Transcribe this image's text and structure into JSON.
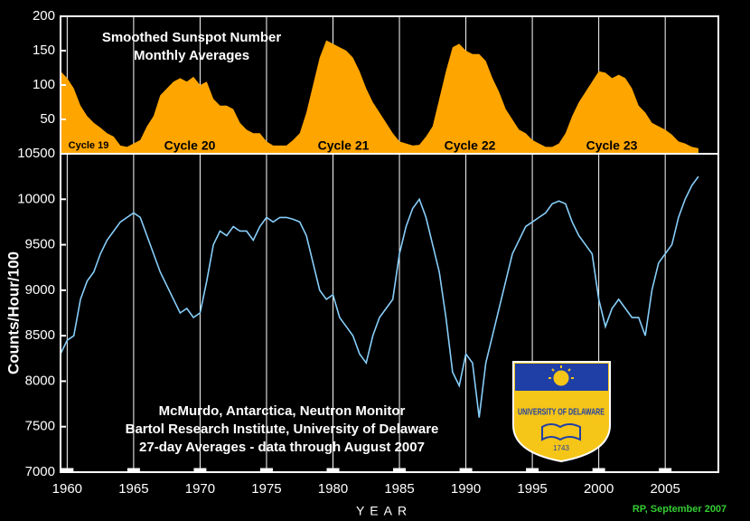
{
  "chart_data": [
    {
      "type": "area",
      "title": "Smoothed Sunspot Number",
      "subtitle": "Monthly Averages",
      "color": "#ffa500",
      "annotations": [
        "Cycle 19",
        "Cycle 20",
        "Cycle 21",
        "Cycle 22",
        "Cycle 23"
      ],
      "x": [
        1959.5,
        1960,
        1960.5,
        1961,
        1961.5,
        1962,
        1962.5,
        1963,
        1963.5,
        1964,
        1964.5,
        1965,
        1965.5,
        1966,
        1966.5,
        1967,
        1967.5,
        1968,
        1968.5,
        1969,
        1969.5,
        1970,
        1970.5,
        1971,
        1971.5,
        1972,
        1972.5,
        1973,
        1973.5,
        1974,
        1974.5,
        1975,
        1975.5,
        1976,
        1976.5,
        1977,
        1977.5,
        1978,
        1978.5,
        1979,
        1979.5,
        1980,
        1980.5,
        1981,
        1981.5,
        1982,
        1982.5,
        1983,
        1983.5,
        1984,
        1984.5,
        1985,
        1985.5,
        1986,
        1986.5,
        1987,
        1987.5,
        1988,
        1988.5,
        1989,
        1989.5,
        1990,
        1990.5,
        1991,
        1991.5,
        1992,
        1992.5,
        1993,
        1993.5,
        1994,
        1994.5,
        1995,
        1995.5,
        1996,
        1996.5,
        1997,
        1997.5,
        1998,
        1998.5,
        1999,
        1999.5,
        2000,
        2000.5,
        2001,
        2001.5,
        2002,
        2002.5,
        2003,
        2003.5,
        2004,
        2004.5,
        2005,
        2005.5,
        2006,
        2006.5,
        2007,
        2007.5
      ],
      "values": [
        120,
        110,
        95,
        70,
        55,
        45,
        38,
        30,
        25,
        12,
        10,
        15,
        20,
        40,
        55,
        85,
        95,
        105,
        110,
        105,
        112,
        100,
        105,
        80,
        70,
        70,
        65,
        45,
        35,
        30,
        30,
        18,
        12,
        12,
        12,
        20,
        30,
        60,
        100,
        140,
        165,
        160,
        155,
        150,
        140,
        120,
        95,
        75,
        60,
        45,
        30,
        18,
        15,
        12,
        13,
        25,
        40,
        80,
        120,
        155,
        160,
        150,
        145,
        145,
        135,
        110,
        90,
        65,
        50,
        35,
        30,
        20,
        15,
        10,
        10,
        15,
        30,
        55,
        75,
        90,
        105,
        120,
        118,
        110,
        115,
        110,
        95,
        70,
        60,
        45,
        40,
        35,
        28,
        18,
        15,
        10,
        8
      ],
      "xlim": [
        1959.5,
        2009
      ],
      "ylim": [
        0,
        200
      ],
      "yticks": [
        50,
        100,
        150,
        200
      ]
    },
    {
      "type": "line",
      "title": "McMurdo, Antarctica, Neutron Monitor",
      "subtitle": "Bartol Research Institute, University of Delaware",
      "note": "27-day Averages - data through August 2007",
      "color": "#87cefa",
      "ylabel": "Counts/Hour/100",
      "xlabel": "YEAR",
      "x": [
        1959.5,
        1960,
        1960.5,
        1961,
        1961.5,
        1962,
        1962.5,
        1963,
        1963.5,
        1964,
        1964.5,
        1965,
        1965.5,
        1966,
        1966.5,
        1967,
        1967.5,
        1968,
        1968.5,
        1969,
        1969.5,
        1970,
        1970.5,
        1971,
        1971.5,
        1972,
        1972.5,
        1973,
        1973.5,
        1974,
        1974.5,
        1975,
        1975.5,
        1976,
        1976.5,
        1977,
        1977.5,
        1978,
        1978.5,
        1979,
        1979.5,
        1980,
        1980.5,
        1981,
        1981.5,
        1982,
        1982.5,
        1983,
        1983.5,
        1984,
        1984.5,
        1985,
        1985.5,
        1986,
        1986.5,
        1987,
        1987.5,
        1988,
        1988.5,
        1989,
        1989.5,
        1990,
        1990.5,
        1991,
        1991.5,
        1992,
        1992.5,
        1993,
        1993.5,
        1994,
        1994.5,
        1995,
        1995.5,
        1996,
        1996.5,
        1997,
        1997.5,
        1998,
        1998.5,
        1999,
        1999.5,
        2000,
        2000.5,
        2001,
        2001.5,
        2002,
        2002.5,
        2003,
        2003.5,
        2004,
        2004.5,
        2005,
        2005.5,
        2006,
        2006.5,
        2007,
        2007.5
      ],
      "values": [
        8300,
        8450,
        8500,
        8900,
        9100,
        9200,
        9400,
        9550,
        9650,
        9750,
        9800,
        9850,
        9800,
        9600,
        9400,
        9200,
        9050,
        8900,
        8750,
        8800,
        8700,
        8750,
        9100,
        9500,
        9650,
        9600,
        9700,
        9650,
        9650,
        9550,
        9700,
        9800,
        9750,
        9800,
        9800,
        9780,
        9750,
        9600,
        9300,
        9000,
        8900,
        8950,
        8700,
        8600,
        8500,
        8300,
        8200,
        8500,
        8700,
        8800,
        8900,
        9400,
        9700,
        9900,
        10000,
        9800,
        9500,
        9200,
        8700,
        8100,
        7950,
        8300,
        8200,
        7600,
        8200,
        8500,
        8800,
        9100,
        9400,
        9550,
        9700,
        9750,
        9800,
        9850,
        9950,
        9980,
        9950,
        9750,
        9600,
        9500,
        9400,
        8900,
        8600,
        8800,
        8900,
        8800,
        8700,
        8700,
        8500,
        9000,
        9300,
        9400,
        9500,
        9800,
        10000,
        10150,
        10250
      ],
      "xlim": [
        1959.5,
        2009
      ],
      "ylim": [
        7000,
        10500
      ],
      "yticks": [
        7000,
        7500,
        8000,
        8500,
        9000,
        9500,
        10000,
        10500
      ],
      "xticks": [
        1960,
        1965,
        1970,
        1975,
        1980,
        1985,
        1990,
        1995,
        2000,
        2005
      ],
      "grid": true
    }
  ],
  "logo": {
    "name": "UNIVERSITY OF DELAWARE",
    "year": "1743"
  },
  "credit": "RP, September 2007"
}
